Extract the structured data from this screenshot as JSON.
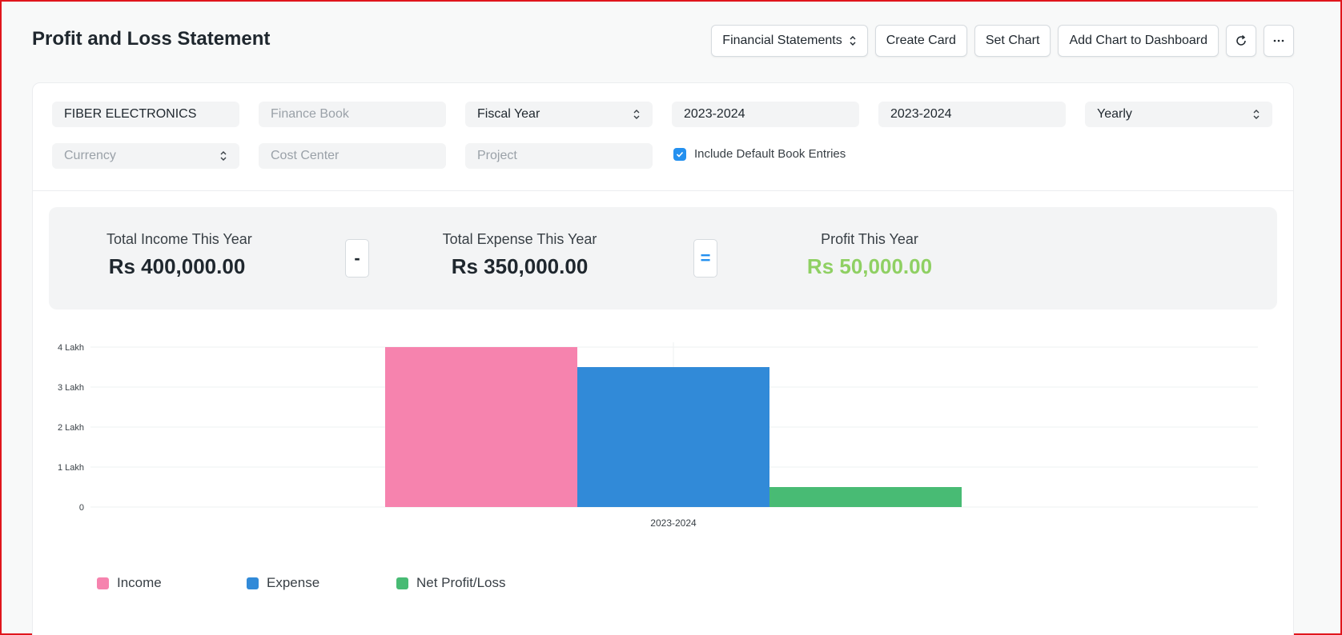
{
  "page": {
    "title": "Profit and Loss Statement"
  },
  "toolbar": {
    "financial_statements": "Financial Statements",
    "create_card": "Create Card",
    "set_chart": "Set Chart",
    "add_chart": "Add Chart to Dashboard"
  },
  "filters": {
    "company": "FIBER ELECTRONICS",
    "finance_book_placeholder": "Finance Book",
    "filter_based_on": "Fiscal Year",
    "from_fiscal_year": "2023-2024",
    "to_fiscal_year": "2023-2024",
    "periodicity": "Yearly",
    "currency_placeholder": "Currency",
    "cost_center_placeholder": "Cost Center",
    "project_placeholder": "Project",
    "include_default_book": "Include Default Book Entries",
    "include_default_book_checked": true
  },
  "summary": {
    "income_label": "Total Income This Year",
    "income_value": "Rs 400,000.00",
    "minus": "-",
    "expense_label": "Total Expense This Year",
    "expense_value": "Rs 350,000.00",
    "equals": "=",
    "profit_label": "Profit This Year",
    "profit_value": "Rs 50,000.00"
  },
  "colors": {
    "income": "#f683ae",
    "expense": "#318ad8",
    "net": "#48bb74",
    "profit_text": "#8fd063",
    "accent": "#2490ef"
  },
  "chart_data": {
    "type": "bar",
    "categories": [
      "2023-2024"
    ],
    "series": [
      {
        "name": "Income",
        "values": [
          400000
        ]
      },
      {
        "name": "Expense",
        "values": [
          350000
        ]
      },
      {
        "name": "Net Profit/Loss",
        "values": [
          50000
        ]
      }
    ],
    "yticks": [
      {
        "value": 0,
        "label": "0"
      },
      {
        "value": 100000,
        "label": "1 Lakh"
      },
      {
        "value": 200000,
        "label": "2 Lakh"
      },
      {
        "value": 300000,
        "label": "3 Lakh"
      },
      {
        "value": 400000,
        "label": "4 Lakh"
      }
    ],
    "ylim": [
      0,
      400000
    ],
    "grid": true,
    "legend_position": "bottom-left"
  }
}
